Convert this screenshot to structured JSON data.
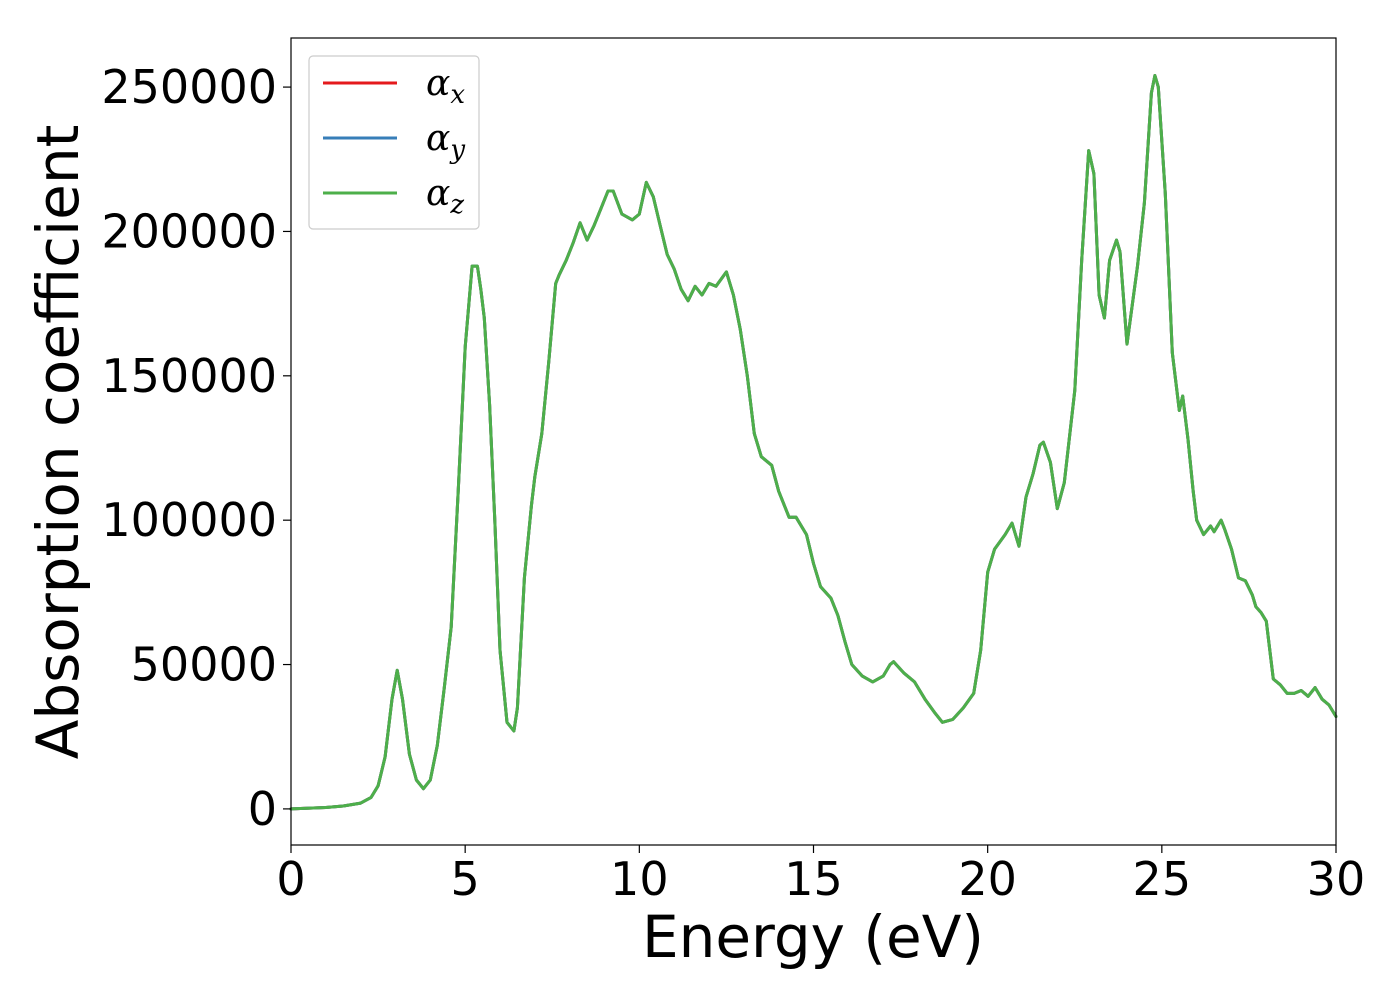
{
  "chart_data": {
    "type": "line",
    "title": "",
    "xlabel": "Energy (eV)",
    "ylabel": "Absorption coefficient",
    "xlim": [
      0,
      30
    ],
    "ylim": [
      -12500,
      267000
    ],
    "xticks": [
      0,
      5,
      10,
      15,
      20,
      25,
      30
    ],
    "xtick_labels": [
      "0",
      "5",
      "10",
      "15",
      "20",
      "25",
      "30"
    ],
    "yticks": [
      0,
      50000,
      100000,
      150000,
      200000,
      250000
    ],
    "ytick_labels": [
      "0",
      "50000",
      "100000",
      "150000",
      "200000",
      "250000"
    ],
    "grid": false,
    "legend_position": "top-left",
    "series_names": [
      "αx",
      "αy",
      "αz"
    ],
    "legend": [
      {
        "symbol": "α",
        "subscript": "x",
        "color": "#e41a1c"
      },
      {
        "symbol": "α",
        "subscript": "y",
        "color": "#377eb8"
      },
      {
        "symbol": "α",
        "subscript": "z",
        "color": "#4daf4a"
      }
    ],
    "note_identical_series": true,
    "x": [
      0,
      1,
      1.5,
      2,
      2.3,
      2.5,
      2.7,
      2.9,
      3.05,
      3.2,
      3.4,
      3.6,
      3.8,
      4.0,
      4.2,
      4.4,
      4.6,
      4.8,
      5.0,
      5.2,
      5.35,
      5.45,
      5.55,
      5.7,
      5.85,
      6.0,
      6.2,
      6.4,
      6.5,
      6.7,
      6.9,
      7.0,
      7.2,
      7.4,
      7.6,
      7.7,
      7.9,
      8.1,
      8.3,
      8.5,
      8.7,
      8.9,
      9.1,
      9.25,
      9.5,
      9.8,
      10.0,
      10.2,
      10.4,
      10.6,
      10.8,
      11.0,
      11.2,
      11.4,
      11.6,
      11.8,
      12.0,
      12.2,
      12.5,
      12.7,
      12.9,
      13.1,
      13.3,
      13.5,
      13.8,
      14.0,
      14.3,
      14.5,
      14.8,
      15.0,
      15.2,
      15.5,
      15.7,
      15.9,
      16.1,
      16.4,
      16.7,
      17.0,
      17.2,
      17.3,
      17.6,
      17.9,
      18.2,
      18.5,
      18.7,
      19.0,
      19.3,
      19.6,
      19.8,
      20.0,
      20.2,
      20.5,
      20.7,
      20.9,
      21.1,
      21.3,
      21.5,
      21.6,
      21.8,
      22.0,
      22.2,
      22.5,
      22.7,
      22.9,
      23.05,
      23.2,
      23.35,
      23.5,
      23.7,
      23.8,
      24.0,
      24.1,
      24.3,
      24.5,
      24.7,
      24.8,
      24.9,
      25.1,
      25.3,
      25.5,
      25.6,
      25.75,
      25.9,
      26.0,
      26.2,
      26.4,
      26.5,
      26.7,
      26.8,
      27.0,
      27.2,
      27.4,
      27.6,
      27.7,
      27.85,
      28.0,
      28.2,
      28.4,
      28.6,
      28.8,
      29.0,
      29.2,
      29.4,
      29.6,
      29.8,
      30.0
    ],
    "y": [
      0,
      500,
      1000,
      2000,
      4000,
      8000,
      18000,
      38000,
      48000,
      38000,
      19000,
      10000,
      7000,
      10000,
      22000,
      42000,
      63000,
      110000,
      160000,
      188000,
      188000,
      180000,
      170000,
      140000,
      100000,
      55000,
      30000,
      27000,
      35000,
      80000,
      105000,
      115000,
      130000,
      155000,
      182000,
      185000,
      190000,
      196000,
      203000,
      197000,
      202000,
      208000,
      214000,
      214000,
      206000,
      204000,
      206000,
      217000,
      212000,
      202000,
      192000,
      187000,
      180000,
      176000,
      181000,
      178000,
      182000,
      181000,
      186000,
      178000,
      166000,
      150000,
      130000,
      122000,
      119000,
      110000,
      101000,
      101000,
      95000,
      85000,
      77000,
      73000,
      67000,
      58000,
      50000,
      46000,
      44000,
      46000,
      50000,
      51000,
      47000,
      44000,
      38000,
      33000,
      30000,
      31000,
      35000,
      40000,
      55000,
      82000,
      90000,
      95000,
      99000,
      91000,
      108000,
      116000,
      126000,
      127000,
      120000,
      104000,
      113000,
      145000,
      190000,
      228000,
      220000,
      178000,
      170000,
      190000,
      197000,
      193000,
      161000,
      170000,
      188000,
      210000,
      248000,
      254000,
      250000,
      213000,
      158000,
      138000,
      143000,
      128000,
      110000,
      100000,
      95000,
      98000,
      96000,
      100000,
      97000,
      90000,
      80000,
      79000,
      74000,
      70000,
      68000,
      65000,
      45000,
      43000,
      40000,
      40000,
      41000,
      39000,
      42000,
      38000,
      36000,
      32000
    ]
  }
}
